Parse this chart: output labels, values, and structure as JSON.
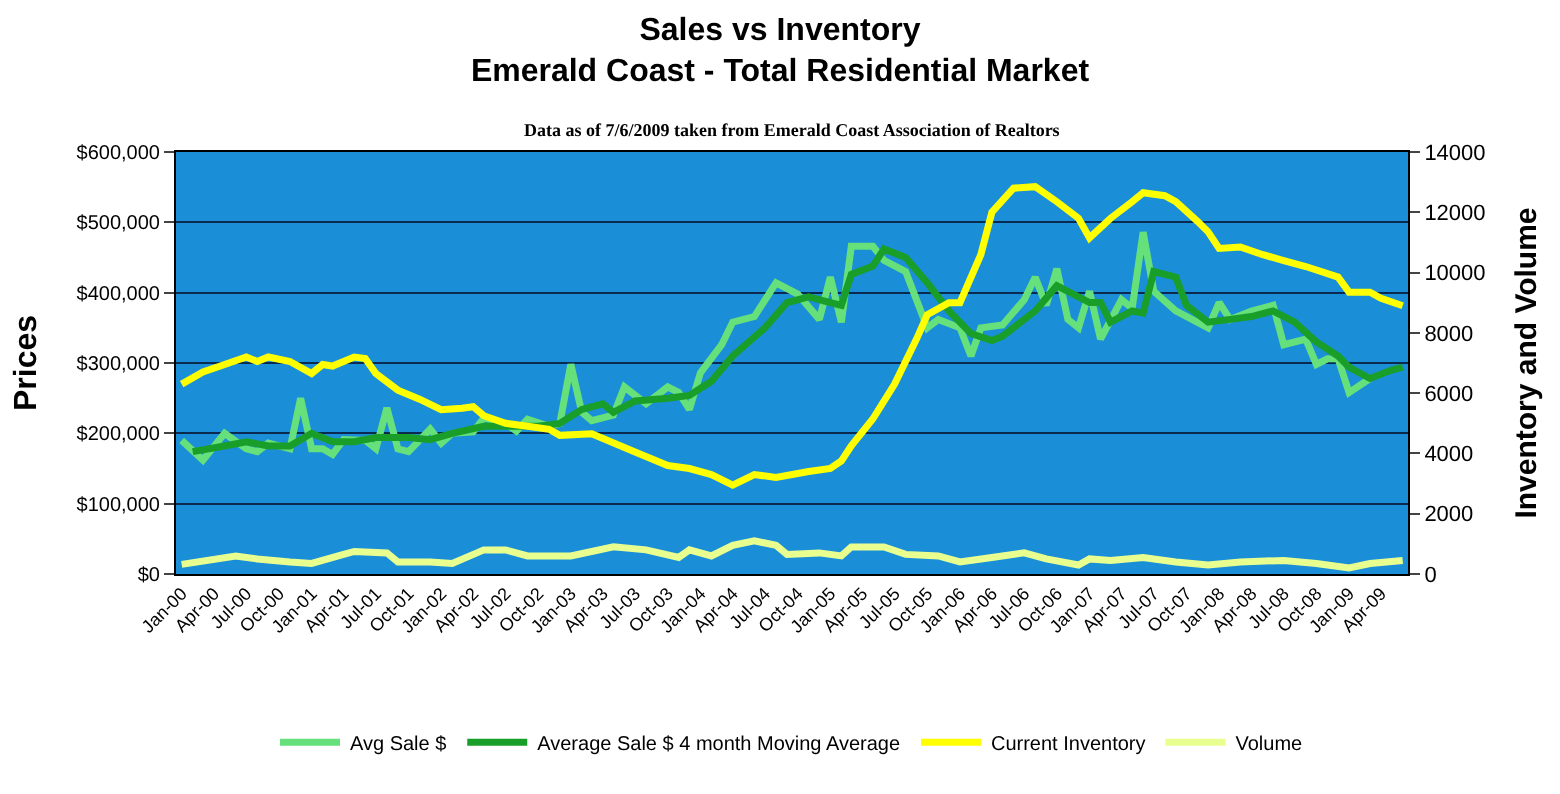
{
  "chart_data": {
    "type": "line",
    "title": "Sales vs Inventory\nEmerald Coast - Total Residential Market",
    "subtitle": "Data as of 7/6/2009 taken from Emerald Coast Association of Realtors",
    "ylabel": "Prices",
    "y2label": "Inventory and Volume",
    "xlim": [
      "1999-12-16",
      "2009-06-16"
    ],
    "xticks": [
      {
        "value": "2000-01",
        "label": "Jan-00"
      },
      {
        "value": "2000-04",
        "label": "Apr-00"
      },
      {
        "value": "2000-07",
        "label": "Jul-00"
      },
      {
        "value": "2000-10",
        "label": "Oct-00"
      },
      {
        "value": "2001-01",
        "label": "Jan-01"
      },
      {
        "value": "2001-04",
        "label": "Apr-01"
      },
      {
        "value": "2001-07",
        "label": "Jul-01"
      },
      {
        "value": "2001-10",
        "label": "Oct-01"
      },
      {
        "value": "2002-01",
        "label": "Jan-02"
      },
      {
        "value": "2002-04",
        "label": "Apr-02"
      },
      {
        "value": "2002-07",
        "label": "Jul-02"
      },
      {
        "value": "2002-10",
        "label": "Oct-02"
      },
      {
        "value": "2003-01",
        "label": "Jan-03"
      },
      {
        "value": "2003-04",
        "label": "Apr-03"
      },
      {
        "value": "2003-07",
        "label": "Jul-03"
      },
      {
        "value": "2003-10",
        "label": "Oct-03"
      },
      {
        "value": "2004-01",
        "label": "Jan-04"
      },
      {
        "value": "2004-04",
        "label": "Apr-04"
      },
      {
        "value": "2004-07",
        "label": "Jul-04"
      },
      {
        "value": "2004-10",
        "label": "Oct-04"
      },
      {
        "value": "2005-01",
        "label": "Jan-05"
      },
      {
        "value": "2005-04",
        "label": "Apr-05"
      },
      {
        "value": "2005-07",
        "label": "Jul-05"
      },
      {
        "value": "2005-10",
        "label": "Oct-05"
      },
      {
        "value": "2006-01",
        "label": "Jan-06"
      },
      {
        "value": "2006-04",
        "label": "Apr-06"
      },
      {
        "value": "2006-07",
        "label": "Jul-06"
      },
      {
        "value": "2006-10",
        "label": "Oct-06"
      },
      {
        "value": "2007-01",
        "label": "Jan-07"
      },
      {
        "value": "2007-04",
        "label": "Apr-07"
      },
      {
        "value": "2007-07",
        "label": "Jul-07"
      },
      {
        "value": "2007-10",
        "label": "Oct-07"
      },
      {
        "value": "2008-01",
        "label": "Jan-08"
      },
      {
        "value": "2008-04",
        "label": "Apr-08"
      },
      {
        "value": "2008-07",
        "label": "Jul-08"
      },
      {
        "value": "2008-10",
        "label": "Oct-08"
      },
      {
        "value": "2009-01",
        "label": "Jan-09"
      },
      {
        "value": "2009-04",
        "label": "Apr-09"
      }
    ],
    "ylim": [
      0,
      600000
    ],
    "yticks": [
      {
        "value": 0,
        "label": "$0"
      },
      {
        "value": 100000,
        "label": "$100,000"
      },
      {
        "value": 200000,
        "label": "$200,000"
      },
      {
        "value": 300000,
        "label": "$300,000"
      },
      {
        "value": 400000,
        "label": "$400,000"
      },
      {
        "value": 500000,
        "label": "$500,000"
      },
      {
        "value": 600000,
        "label": "$600,000"
      }
    ],
    "y2lim": [
      0,
      14000
    ],
    "y2ticks": [
      0,
      2000,
      4000,
      6000,
      8000,
      10000,
      12000,
      14000
    ],
    "grid": "y",
    "legend": "bottom",
    "series": [
      {
        "name": "Avg Sale $",
        "color": "#66e07a",
        "x": [
          "2000-01",
          "2000-03",
          "2000-05",
          "2000-07",
          "2000-08",
          "2000-09",
          "2000-11",
          "2000-12",
          "2001-01",
          "2001-02",
          "2001-03",
          "2001-04",
          "2001-06",
          "2001-07",
          "2001-08",
          "2001-09",
          "2001-10",
          "2001-12",
          "2002-01",
          "2002-02",
          "2002-04",
          "2002-05",
          "2002-07",
          "2002-08",
          "2002-09",
          "2002-11",
          "2002-12",
          "2003-01",
          "2003-02",
          "2003-03",
          "2003-05",
          "2003-06",
          "2003-08",
          "2003-10",
          "2003-11",
          "2003-12",
          "2004-01",
          "2004-03",
          "2004-04",
          "2004-06",
          "2004-08",
          "2004-10",
          "2004-12",
          "2005-01",
          "2005-02",
          "2005-03",
          "2005-05",
          "2005-06",
          "2005-08",
          "2005-10",
          "2005-11",
          "2006-01",
          "2006-02",
          "2006-03",
          "2006-05",
          "2006-07",
          "2006-08",
          "2006-09",
          "2006-10",
          "2006-11",
          "2006-12",
          "2007-01",
          "2007-02",
          "2007-04",
          "2007-05",
          "2007-06",
          "2007-07",
          "2007-09",
          "2007-12",
          "2008-01",
          "2008-02",
          "2008-04",
          "2008-06",
          "2008-07",
          "2008-09",
          "2008-10",
          "2008-11",
          "2008-12",
          "2009-01",
          "2009-03"
        ],
        "values": [
          190000,
          162000,
          200000,
          178000,
          174000,
          186000,
          178000,
          250000,
          178000,
          178000,
          170000,
          191000,
          190000,
          178000,
          236000,
          178000,
          174000,
          206000,
          186000,
          200000,
          202000,
          222000,
          214000,
          203000,
          220000,
          210000,
          214000,
          298000,
          230000,
          218000,
          226000,
          266000,
          242000,
          266000,
          258000,
          234000,
          286000,
          326000,
          358000,
          366000,
          414000,
          398000,
          362000,
          422000,
          358000,
          466000,
          466000,
          446000,
          430000,
          350000,
          362000,
          350000,
          310000,
          350000,
          354000,
          390000,
          422000,
          382000,
          434000,
          362000,
          350000,
          402000,
          334000,
          390000,
          378000,
          486000,
          402000,
          374000,
          350000,
          386000,
          362000,
          374000,
          382000,
          326000,
          334000,
          298000,
          306000,
          306000,
          258000,
          278000
        ]
      },
      {
        "name": "Average Sale $ 4 month Moving Average",
        "color": "#1a9e2a",
        "x": [
          "2000-02",
          "2000-05",
          "2000-07",
          "2000-09",
          "2000-11",
          "2001-01",
          "2001-03",
          "2001-05",
          "2001-07",
          "2001-10",
          "2001-12",
          "2002-02",
          "2002-05",
          "2002-07",
          "2002-10",
          "2002-12",
          "2003-02",
          "2003-04",
          "2003-05",
          "2003-07",
          "2003-10",
          "2003-12",
          "2004-02",
          "2004-04",
          "2004-07",
          "2004-09",
          "2004-11",
          "2005-01",
          "2005-02",
          "2005-03",
          "2005-05",
          "2005-06",
          "2005-08",
          "2005-10",
          "2005-12",
          "2006-02",
          "2006-04",
          "2006-05",
          "2006-07",
          "2006-08",
          "2006-10",
          "2006-11",
          "2007-01",
          "2007-02",
          "2007-03",
          "2007-05",
          "2007-06",
          "2007-07",
          "2007-09",
          "2007-10",
          "2007-12",
          "2008-02",
          "2008-04",
          "2008-06",
          "2008-08",
          "2008-10",
          "2008-12",
          "2009-01",
          "2009-03",
          "2009-05",
          "2009-06"
        ],
        "values": [
          174000,
          182000,
          188000,
          182000,
          182000,
          200000,
          188000,
          188000,
          194000,
          194000,
          191000,
          200000,
          210000,
          210000,
          210000,
          214000,
          234000,
          242000,
          230000,
          246000,
          250000,
          254000,
          274000,
          310000,
          350000,
          386000,
          394000,
          386000,
          382000,
          426000,
          438000,
          462000,
          450000,
          414000,
          374000,
          342000,
          332000,
          338000,
          362000,
          374000,
          410000,
          402000,
          386000,
          386000,
          358000,
          374000,
          371000,
          430000,
          422000,
          382000,
          358000,
          362000,
          366000,
          374000,
          358000,
          330000,
          310000,
          294000,
          278000,
          290000,
          294000
        ]
      },
      {
        "name": "Current Inventory",
        "color": "#ffff00",
        "axis": "y2",
        "x": [
          "2000-01",
          "2000-03",
          "2000-05",
          "2000-07",
          "2000-08",
          "2000-09",
          "2000-11",
          "2001-01",
          "2001-02",
          "2001-03",
          "2001-05",
          "2001-06",
          "2001-07",
          "2001-09",
          "2001-11",
          "2002-01",
          "2002-03",
          "2002-04",
          "2002-05",
          "2002-07",
          "2002-09",
          "2002-11",
          "2002-12",
          "2003-03",
          "2003-07",
          "2003-10",
          "2003-12",
          "2004-02",
          "2004-04",
          "2004-06",
          "2004-08",
          "2004-11",
          "2005-01",
          "2005-02",
          "2005-03",
          "2005-05",
          "2005-07",
          "2005-09",
          "2005-10",
          "2005-12",
          "2006-01",
          "2006-03",
          "2006-04",
          "2006-06",
          "2006-08",
          "2006-10",
          "2006-12",
          "2007-01",
          "2007-03",
          "2007-05",
          "2007-06",
          "2007-08",
          "2007-09",
          "2007-11",
          "2007-12",
          "2008-01",
          "2008-03",
          "2008-05",
          "2008-07",
          "2008-09",
          "2008-12",
          "2009-01",
          "2009-03",
          "2009-04",
          "2009-06"
        ],
        "values": [
          6300,
          6700,
          6950,
          7200,
          7050,
          7200,
          7050,
          6650,
          6950,
          6900,
          7200,
          7150,
          6650,
          6100,
          5800,
          5450,
          5500,
          5550,
          5250,
          5000,
          4900,
          4800,
          4600,
          4650,
          4050,
          3600,
          3500,
          3300,
          2950,
          3300,
          3200,
          3400,
          3500,
          3750,
          4250,
          5150,
          6300,
          7800,
          8600,
          9000,
          9000,
          10600,
          12000,
          12800,
          12850,
          12350,
          11800,
          11150,
          11800,
          12350,
          12650,
          12550,
          12350,
          11700,
          11350,
          10800,
          10850,
          10600,
          10400,
          10200,
          9850,
          9350,
          9350,
          9150,
          8900
        ]
      },
      {
        "name": "Volume",
        "color": "#e8ff90",
        "axis": "y2",
        "x": [
          "2000-01",
          "2000-06",
          "2000-08",
          "2000-11",
          "2001-01",
          "2001-04",
          "2001-05",
          "2001-08",
          "2001-09",
          "2001-12",
          "2002-02",
          "2002-05",
          "2002-07",
          "2002-09",
          "2003-01",
          "2003-05",
          "2003-08",
          "2003-11",
          "2003-12",
          "2004-02",
          "2004-04",
          "2004-06",
          "2004-08",
          "2004-09",
          "2004-12",
          "2005-02",
          "2005-03",
          "2005-06",
          "2005-08",
          "2005-11",
          "2006-01",
          "2006-04",
          "2006-07",
          "2006-09",
          "2006-12",
          "2007-01",
          "2007-03",
          "2007-06",
          "2007-09",
          "2007-12",
          "2008-03",
          "2008-07",
          "2008-10",
          "2009-01",
          "2009-03",
          "2009-06"
        ],
        "values": [
          320,
          600,
          500,
          400,
          350,
          650,
          750,
          700,
          400,
          400,
          350,
          800,
          800,
          600,
          600,
          900,
          800,
          550,
          800,
          600,
          950,
          1100,
          950,
          650,
          700,
          600,
          900,
          900,
          650,
          600,
          400,
          550,
          700,
          500,
          300,
          500,
          450,
          550,
          400,
          300,
          400,
          450,
          350,
          200,
          350,
          450
        ]
      }
    ]
  }
}
